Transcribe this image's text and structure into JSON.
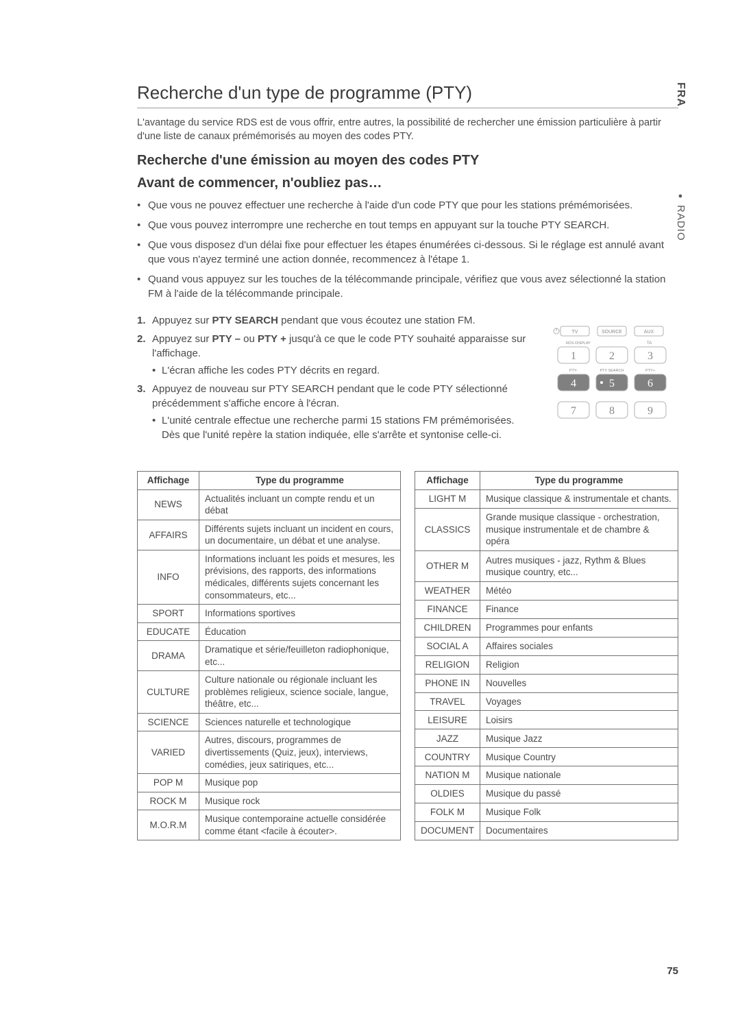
{
  "side": {
    "lang": "FRA",
    "section": "RADIO"
  },
  "title": "Recherche d'un type de programme (PTY)",
  "intro": "L'avantage du service RDS est de vous offrir, entre autres, la possibilité de rechercher une émission particulière à partir d'une liste de canaux prémémorisés au moyen des codes PTY.",
  "sub1": "Recherche d'une émission au moyen des codes PTY",
  "sub2": "Avant de commencer, n'oubliez pas…",
  "bullets": [
    "Que vous ne pouvez effectuer une recherche à l'aide d'un code PTY que pour les stations prémémorisées.",
    "Que vous pouvez interrompre une recherche en tout temps en appuyant sur la touche PTY SEARCH.",
    "Que vous disposez d'un délai fixe pour effectuer les étapes énumérées ci-dessous. Si le réglage est annulé avant que vous n'ayez terminé une action donnée, recommencez à l'étape 1.",
    "Quand vous appuyez sur les touches de la télécommande principale, vérifiez que vous avez sélectionné la station FM à l'aide de la télécommande principale."
  ],
  "steps": {
    "s1a": "Appuyez sur ",
    "s1b": "PTY SEARCH",
    "s1c": " pendant que vous écoutez une station FM.",
    "s2a": "Appuyez sur ",
    "s2b": "PTY –",
    "s2c": " ou ",
    "s2d": "PTY +",
    "s2e": " jusqu'à ce que le code PTY souhaité apparaisse sur l'affichage.",
    "s2sub": "L'écran affiche les codes PTY décrits en regard.",
    "s3": "Appuyez de nouveau sur PTY SEARCH pendant que le code PTY sélectionné précédemment s'affiche encore à l'écran.",
    "s3sub": "L'unité centrale effectue une recherche parmi 15 stations FM prémémorisées. Dès que l'unité repère la station indiquée, elle s'arrête et syntonise celle-ci."
  },
  "remote": {
    "labels": [
      "TV",
      "SOURCE",
      "AUX",
      "RDS DISPLAY",
      "TA",
      "PTY-",
      "PTY SEARCH",
      "PTY+"
    ],
    "digits": [
      "1",
      "2",
      "3",
      "4",
      "5",
      "6",
      "7",
      "8",
      "9"
    ],
    "highlight_indices": [
      3,
      4,
      5
    ],
    "colors": {
      "stroke": "#b0b0b0",
      "text": "#888888",
      "hl_fill": "#808080",
      "hl_text": "#ffffff"
    }
  },
  "tableHeaders": {
    "col1": "Affichage",
    "col2": "Type du programme"
  },
  "tableLeft": [
    [
      "NEWS",
      "Actualités incluant un compte rendu et un débat"
    ],
    [
      "AFFAIRS",
      "Différents sujets incluant un incident en cours, un documentaire, un débat et une analyse."
    ],
    [
      "INFO",
      "Informations incluant les poids et mesures, les prévisions, des rapports, des informations médicales, différents sujets concernant les consommateurs, etc..."
    ],
    [
      "SPORT",
      "Informations sportives"
    ],
    [
      "EDUCATE",
      "Éducation"
    ],
    [
      "DRAMA",
      "Dramatique et série/feuilleton radiophonique, etc..."
    ],
    [
      "CULTURE",
      "Culture nationale ou régionale incluant les problèmes religieux, science sociale, langue, théâtre, etc..."
    ],
    [
      "SCIENCE",
      "Sciences naturelle et technologique"
    ],
    [
      "VARIED",
      "Autres, discours, programmes de divertissements (Quiz, jeux), interviews, comédies, jeux satiriques, etc..."
    ],
    [
      "POP M",
      "Musique pop"
    ],
    [
      "ROCK M",
      "Musique rock"
    ],
    [
      "M.O.R.M",
      "Musique contemporaine actuelle considérée comme étant <facile à écouter>."
    ]
  ],
  "tableRight": [
    [
      "LIGHT M",
      "Musique classique & instrumentale et chants."
    ],
    [
      "CLASSICS",
      "Grande musique classique - orchestration, musique instrumentale et de chambre & opéra"
    ],
    [
      "OTHER M",
      "Autres musiques - jazz, Rythm & Blues musique country, etc..."
    ],
    [
      "WEATHER",
      "Météo"
    ],
    [
      "FINANCE",
      "Finance"
    ],
    [
      "CHILDREN",
      "Programmes pour enfants"
    ],
    [
      "SOCIAL A",
      "Affaires sociales"
    ],
    [
      "RELIGION",
      "Religion"
    ],
    [
      "PHONE IN",
      "Nouvelles"
    ],
    [
      "TRAVEL",
      "Voyages"
    ],
    [
      "LEISURE",
      "Loisirs"
    ],
    [
      "JAZZ",
      "Musique Jazz"
    ],
    [
      "COUNTRY",
      "Musique Country"
    ],
    [
      "NATION M",
      "Musique nationale"
    ],
    [
      "OLDIES",
      "Musique du passé"
    ],
    [
      "FOLK M",
      "Musique Folk"
    ],
    [
      "DOCUMENT",
      "Documentaires"
    ]
  ],
  "pageNumber": "75"
}
